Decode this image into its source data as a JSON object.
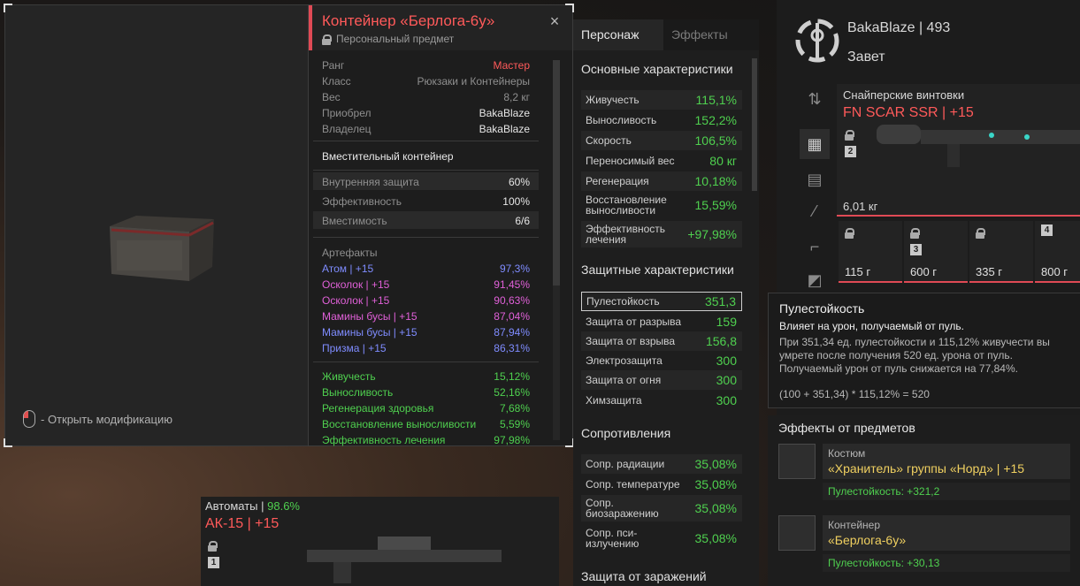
{
  "preview": {
    "open_mod_label": "- Открыть модификацию"
  },
  "item": {
    "title": "Контейнер «Берлога-6у»",
    "subtitle": "Персональный предмет",
    "close_glyph": "×",
    "props": [
      {
        "label": "Ранг",
        "value": "Мастер",
        "color": "#ff5a5a"
      },
      {
        "label": "Класс",
        "value": "Рюкзаки и Контейнеры",
        "color": "#8f8f8f"
      },
      {
        "label": "Вес",
        "value": "8,2 кг",
        "color": "#8f8f8f"
      },
      {
        "label": "Приобрел",
        "value": "BakaBlaze",
        "color": "#e6e6e6"
      },
      {
        "label": "Владелец",
        "value": "BakaBlaze",
        "color": "#e6e6e6"
      }
    ],
    "container_type": "Вместительный контейнер",
    "container_stats": [
      {
        "label": "Внутренняя защита",
        "value": "60%"
      },
      {
        "label": "Эффективность",
        "value": "100%"
      },
      {
        "label": "Вместимость",
        "value": "6/6"
      }
    ],
    "artifacts_title": "Артефакты",
    "artifacts": [
      {
        "name": "Атом | +15",
        "value": "97,3%",
        "color": "#7f8cff"
      },
      {
        "name": "Осколок | +15",
        "value": "91,45%",
        "color": "#e060d8"
      },
      {
        "name": "Осколок | +15",
        "value": "90,63%",
        "color": "#e060d8"
      },
      {
        "name": "Мамины бусы | +15",
        "value": "87,04%",
        "color": "#e060d8"
      },
      {
        "name": "Мамины бусы | +15",
        "value": "87,94%",
        "color": "#7f8cff"
      },
      {
        "name": "Призма | +15",
        "value": "86,31%",
        "color": "#7f8cff"
      }
    ],
    "bonuses": [
      {
        "name": "Живучесть",
        "value": "15,12%"
      },
      {
        "name": "Выносливость",
        "value": "52,16%"
      },
      {
        "name": "Регенерация здоровья",
        "value": "7,68%"
      },
      {
        "name": "Восстановление выносливости",
        "value": "5,59%"
      },
      {
        "name": "Эффективность лечения",
        "value": "97,98%"
      }
    ]
  },
  "stats": {
    "tab_character": "Персонаж",
    "tab_effects": "Эффекты",
    "basic_title": "Основные характеристики",
    "basic": [
      {
        "label": "Живучесть",
        "value": "115,1%"
      },
      {
        "label": "Выносливость",
        "value": "152,2%"
      },
      {
        "label": "Скорость",
        "value": "106,5%"
      },
      {
        "label": "Переносимый вес",
        "value": "80 кг"
      },
      {
        "label": "Регенерация",
        "value": "10,18%"
      },
      {
        "label": "Восстановление выносливости",
        "value": "15,59%"
      },
      {
        "label": "Эффективность лечения",
        "value": "+97,98%"
      }
    ],
    "protect_title": "Защитные характеристики",
    "protect": [
      {
        "label": "Пулестойкость",
        "value": "351,3"
      },
      {
        "label": "Защита от разрыва",
        "value": "159"
      },
      {
        "label": "Защита от взрыва",
        "value": "156,8"
      },
      {
        "label": "Электрозащита",
        "value": "300"
      },
      {
        "label": "Защита от огня",
        "value": "300"
      },
      {
        "label": "Химзащита",
        "value": "300"
      }
    ],
    "resist_title": "Сопротивления",
    "resist": [
      {
        "label": "Сопр. радиации",
        "value": "35,08%"
      },
      {
        "label": "Сопр. температуре",
        "value": "35,08%"
      },
      {
        "label": "Сопр. биозаражению",
        "value": "35,08%"
      },
      {
        "label": "Сопр. пси-излучению",
        "value": "35,08%"
      }
    ],
    "infection_title": "Защита от заражений"
  },
  "character": {
    "name": "BakaBlaze | 493",
    "faction": "Завет",
    "weapon_category": "Снайперские винтовки",
    "weapon_name": "FN SCAR SSR | +15",
    "weapon_badge": "2",
    "weapon_weight": "6,01 кг",
    "mini_slots": [
      {
        "weight": "115 г",
        "badge": ""
      },
      {
        "weight": "600 г",
        "badge": "3"
      },
      {
        "weight": "335 г",
        "badge": ""
      },
      {
        "weight": "800 г",
        "badge": "4"
      }
    ]
  },
  "tooltip": {
    "title": "Пулестойкость",
    "subtitle": "Влияет на урон, получаемый от пуль.",
    "line1": "При 351,34 ед. пулестойкости и 115,12% живучести вы",
    "line2": "умрете после получения 520 ед. урона от пуль.",
    "line3": "Получаемый урон от пуль снижается на 77,84%.",
    "formula": "(100 + 351,34) * 115,12% = 520"
  },
  "effects": {
    "title": "Эффекты от предметов",
    "items": [
      {
        "type": "Костюм",
        "name": "«Хранитель» группы «Норд» | +15",
        "bonus": "Пулестойкость: +321,2"
      },
      {
        "type": "Контейнер",
        "name": "«Берлога-6у»",
        "bonus": "Пулестойкость: +30,13"
      }
    ]
  },
  "ak": {
    "category": "Автоматы |",
    "category_pct": "98.6%",
    "name": "АК-15 | +15",
    "badge": "1"
  }
}
